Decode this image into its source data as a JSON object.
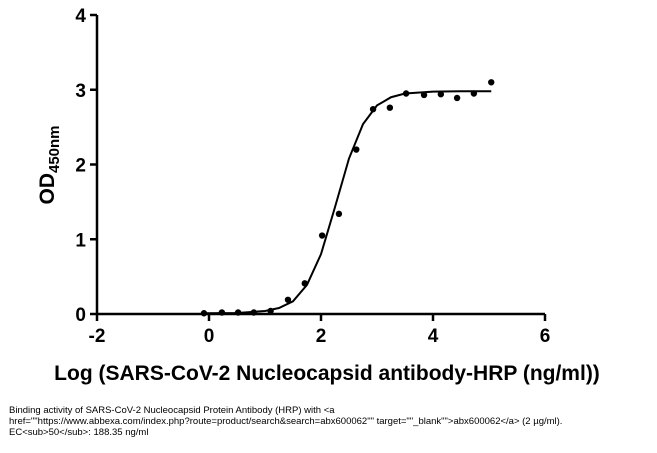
{
  "chart_data": {
    "type": "scatter",
    "x_label": "Log (SARS-CoV-2 Nucleocapsid antibody-HRP (ng/ml))",
    "y_label": "OD",
    "y_label_sub": "450nm",
    "x": [
      -0.09,
      0.23,
      0.52,
      0.8,
      1.1,
      1.41,
      1.71,
      2.02,
      2.32,
      2.63,
      2.93,
      3.23,
      3.52,
      3.84,
      4.14,
      4.43,
      4.73,
      5.04
    ],
    "values": [
      0.01,
      0.02,
      0.02,
      0.02,
      0.04,
      0.19,
      0.41,
      1.05,
      1.34,
      2.2,
      2.74,
      2.76,
      2.95,
      2.93,
      2.94,
      2.89,
      2.95,
      3.1
    ],
    "curve": {
      "x": [
        -0.1,
        0.5,
        1,
        1.25,
        1.5,
        1.75,
        2,
        2.25,
        2.5,
        2.75,
        3,
        3.25,
        3.5,
        4,
        4.5,
        5.04
      ],
      "values": [
        0.01,
        0.014,
        0.04,
        0.08,
        0.17,
        0.39,
        0.8,
        1.43,
        2.08,
        2.54,
        2.79,
        2.9,
        2.95,
        2.975,
        2.98,
        2.98
      ]
    },
    "color": "#000000",
    "xlim": [
      -2,
      6
    ],
    "xticks": [
      -2,
      0,
      2,
      4,
      6
    ],
    "ylim": [
      0,
      4
    ],
    "yticks": [
      0,
      1,
      2,
      3,
      4
    ],
    "caption": [
      "Binding activity of SARS-CoV-2 Nucleocapsid Protein Antibody (HRP) with <a",
      "href=\"\"https://www.abbexa.com/index.php?route=product/search&search=abx600062\"\" target=\"\"_blank\"\">abx600062</a> (2 µg/ml).",
      "EC<sub>50</sub>: 188.35 ng/ml"
    ]
  }
}
